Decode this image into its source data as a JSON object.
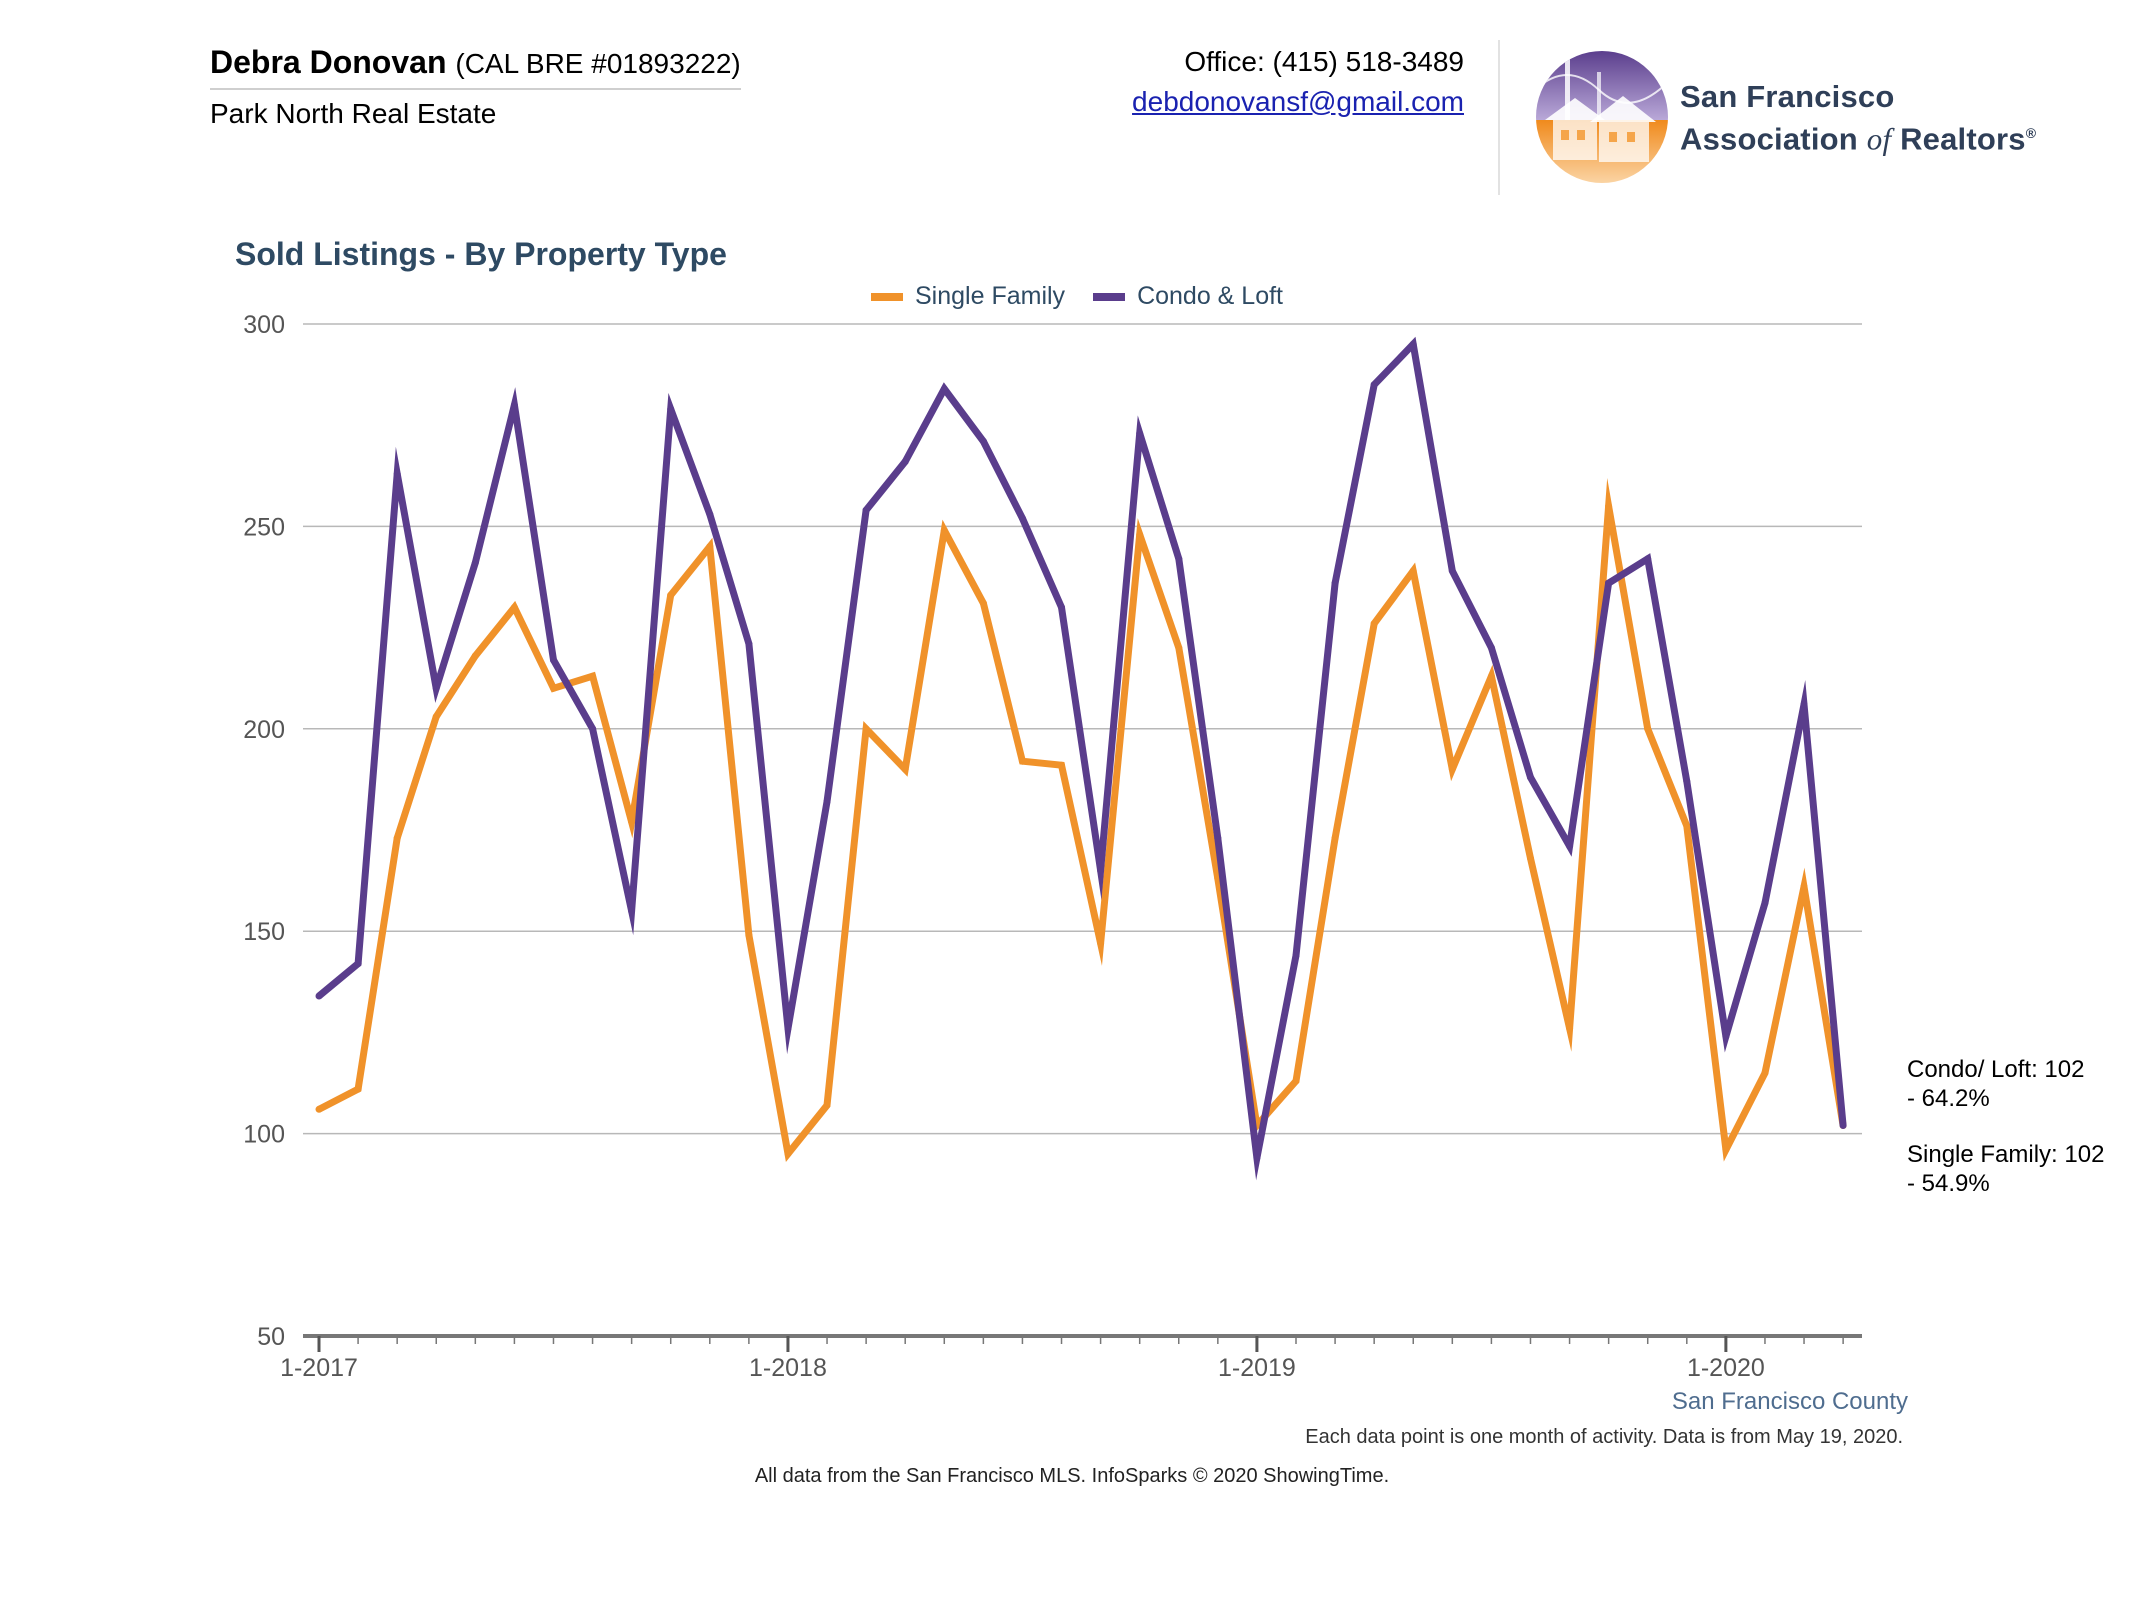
{
  "agent": {
    "name": "Debra Donovan",
    "license": "(CAL BRE #01893222)",
    "company": "Park North Real Estate"
  },
  "contact": {
    "office": "Office: (415) 518-3489",
    "email": "debdonovansf@gmail.com"
  },
  "logo": {
    "line1": "San Francisco",
    "line2a": "Association",
    "line2of": "of",
    "line2b": "Realtors",
    "trademark": "®",
    "icon": "golden-gate-houses-logo-icon"
  },
  "colors": {
    "single_family": "#f0922a",
    "condo_loft": "#5a3d8c",
    "title": "#2e4a63",
    "grid": "#b8b8b8"
  },
  "annotations": {
    "condo": [
      "Condo/ Loft: 102",
      "- 64.2%"
    ],
    "single": [
      "Single Family: 102",
      "- 54.9%"
    ]
  },
  "county": "San Francisco County",
  "footnote": "Each data point is one month of activity. Data is from May 19, 2020.",
  "source": "All data from the San Francisco MLS. InfoSparks © 2020 ShowingTime.",
  "chart_data": {
    "type": "line",
    "title": "Sold Listings - By Property Type",
    "xlabel": "",
    "ylabel": "",
    "ylim": [
      50,
      300
    ],
    "yticks": [
      50,
      100,
      150,
      200,
      250,
      300
    ],
    "xtick_labels": [
      "1-2017",
      "1-2018",
      "1-2019",
      "1-2020"
    ],
    "xtick_positions": [
      0,
      12,
      24,
      36
    ],
    "grid": true,
    "legend_position": "top-center",
    "x": [
      "1-2017",
      "2-2017",
      "3-2017",
      "4-2017",
      "5-2017",
      "6-2017",
      "7-2017",
      "8-2017",
      "9-2017",
      "10-2017",
      "11-2017",
      "12-2017",
      "1-2018",
      "2-2018",
      "3-2018",
      "4-2018",
      "5-2018",
      "6-2018",
      "7-2018",
      "8-2018",
      "9-2018",
      "10-2018",
      "11-2018",
      "12-2018",
      "1-2019",
      "2-2019",
      "3-2019",
      "4-2019",
      "5-2019",
      "6-2019",
      "7-2019",
      "8-2019",
      "9-2019",
      "10-2019",
      "11-2019",
      "12-2019",
      "1-2020",
      "2-2020",
      "3-2020",
      "4-2020"
    ],
    "series": [
      {
        "name": "Single Family",
        "color": "#f0922a",
        "values": [
          106,
          111,
          173,
          203,
          218,
          230,
          210,
          213,
          177,
          233,
          245,
          149,
          95,
          107,
          200,
          190,
          249,
          231,
          192,
          191,
          147,
          248,
          220,
          163,
          102,
          113,
          173,
          226,
          239,
          190,
          213,
          168,
          126,
          255,
          200,
          176,
          96,
          115,
          161,
          102
        ]
      },
      {
        "name": "Condo & Loft",
        "color": "#5a3d8c",
        "values": [
          134,
          142,
          263,
          210,
          241,
          280,
          217,
          200,
          155,
          279,
          253,
          221,
          126,
          182,
          254,
          266,
          284,
          271,
          252,
          230,
          165,
          273,
          242,
          173,
          94,
          144,
          236,
          285,
          295,
          239,
          220,
          188,
          171,
          236,
          242,
          187,
          124,
          157,
          206,
          102
        ]
      }
    ]
  }
}
